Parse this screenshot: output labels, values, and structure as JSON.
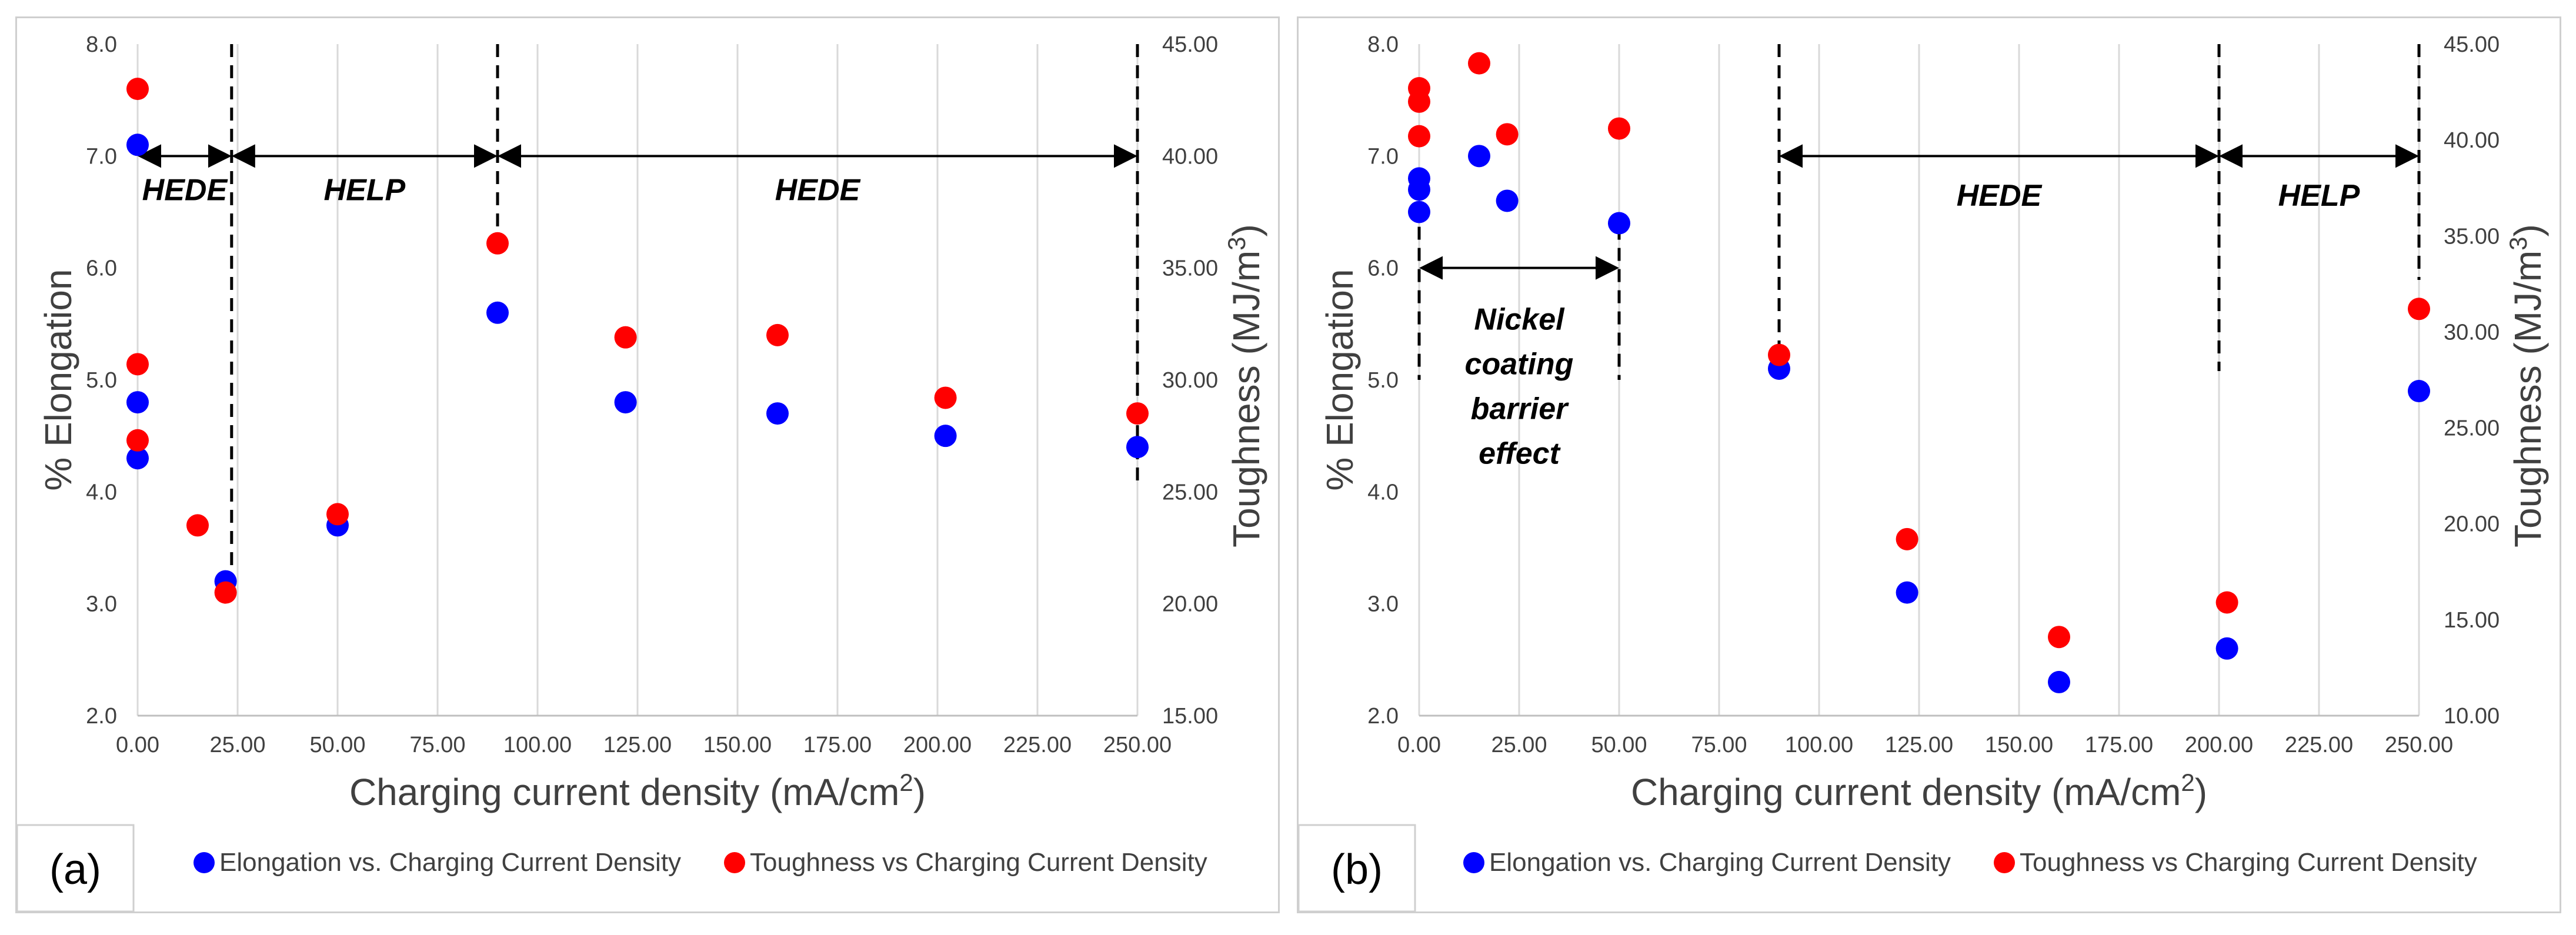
{
  "chart_data": [
    {
      "type": "scatter",
      "panel_label": "(a)",
      "xlabel": "Charging current density (mA/cm",
      "xlabel_sup": "2",
      "xlabel_end": ")",
      "ylabel_left": "% Elongation",
      "ylabel_right": "Toughness (MJ/m",
      "ylabel_right_sup": "3",
      "ylabel_right_end": ")",
      "xlim": [
        0,
        250
      ],
      "ylim_left": [
        2,
        8
      ],
      "ylim_right": [
        15,
        45
      ],
      "x_ticks": [
        "0.00",
        "25.00",
        "50.00",
        "75.00",
        "100.00",
        "125.00",
        "150.00",
        "175.00",
        "200.00",
        "225.00",
        "250.00"
      ],
      "y_left_ticks": [
        "2.0",
        "3.0",
        "4.0",
        "5.0",
        "6.0",
        "7.0",
        "8.0"
      ],
      "y_right_ticks": [
        "15.00",
        "20.00",
        "25.00",
        "30.00",
        "35.00",
        "40.00",
        "45.00"
      ],
      "grid": "vertical",
      "legend_position": "bottom",
      "series": [
        {
          "name": "Elongation vs. Charging Current Density",
          "axis": "left",
          "color": "#0000ff",
          "points": [
            [
              0,
              7.1
            ],
            [
              0,
              4.8
            ],
            [
              0,
              4.3
            ],
            [
              22,
              3.2
            ],
            [
              50,
              3.7
            ],
            [
              90,
              5.6
            ],
            [
              122,
              4.8
            ],
            [
              160,
              4.7
            ],
            [
              202,
              4.5
            ],
            [
              250,
              4.4
            ]
          ]
        },
        {
          "name": "Toughness vs Charging Current Density",
          "axis": "right",
          "color": "#ff0000",
          "points": [
            [
              0,
              43.0
            ],
            [
              0,
              30.7
            ],
            [
              0,
              27.3
            ],
            [
              15,
              23.5
            ],
            [
              22,
              20.5
            ],
            [
              50,
              24.0
            ],
            [
              90,
              36.1
            ],
            [
              122,
              31.9
            ],
            [
              160,
              32.0
            ],
            [
              202,
              29.2
            ],
            [
              250,
              28.5
            ]
          ]
        }
      ],
      "dividers": [
        23.5,
        90,
        250
      ],
      "regions": [
        {
          "label": "HEDE",
          "from": 0,
          "to": 23.5
        },
        {
          "label": "HELP",
          "from": 23.5,
          "to": 90
        },
        {
          "label": "HEDE",
          "from": 90,
          "to": 250
        }
      ],
      "arrow_y": 7.0,
      "label_y": 6.7
    },
    {
      "type": "scatter",
      "panel_label": "(b)",
      "xlabel": "Charging current density (mA/cm",
      "xlabel_sup": "2",
      "xlabel_end": ")",
      "ylabel_left": "% Elongation",
      "ylabel_right": "Toughness (MJ/m",
      "ylabel_right_sup": "3",
      "ylabel_right_end": ")",
      "xlim": [
        0,
        250
      ],
      "ylim_left": [
        2,
        8
      ],
      "ylim_right": [
        10,
        45
      ],
      "x_ticks": [
        "0.00",
        "25.00",
        "50.00",
        "75.00",
        "100.00",
        "125.00",
        "150.00",
        "175.00",
        "200.00",
        "225.00",
        "250.00"
      ],
      "y_left_ticks": [
        "2.0",
        "3.0",
        "4.0",
        "5.0",
        "6.0",
        "7.0",
        "8.0"
      ],
      "y_right_ticks": [
        "10.00",
        "15.00",
        "20.00",
        "25.00",
        "30.00",
        "35.00",
        "40.00",
        "45.00"
      ],
      "grid": "vertical",
      "legend_position": "bottom",
      "series": [
        {
          "name": "Elongation vs. Charging Current Density",
          "axis": "left",
          "color": "#0000ff",
          "points": [
            [
              0,
              6.8
            ],
            [
              0,
              6.7
            ],
            [
              0,
              6.5
            ],
            [
              15,
              7.0
            ],
            [
              22,
              6.6
            ],
            [
              50,
              6.4
            ],
            [
              90,
              5.1
            ],
            [
              122,
              3.1
            ],
            [
              160,
              2.3
            ],
            [
              202,
              2.6
            ],
            [
              250,
              4.9
            ]
          ]
        },
        {
          "name": "Toughness vs Charging Current Density",
          "axis": "right",
          "color": "#ff0000",
          "points": [
            [
              0,
              42.7
            ],
            [
              0,
              42.0
            ],
            [
              0,
              40.2
            ],
            [
              15,
              44.0
            ],
            [
              22,
              40.3
            ],
            [
              50,
              40.6
            ],
            [
              90,
              28.8
            ],
            [
              122,
              19.2
            ],
            [
              160,
              14.1
            ],
            [
              202,
              15.9
            ],
            [
              250,
              31.2
            ]
          ]
        }
      ],
      "nickel_bracket": {
        "from": 0,
        "to": 50,
        "y": 6.0,
        "lines": [
          "Nickel",
          "coating",
          "barrier",
          "effect"
        ]
      },
      "dividers": [
        90,
        200,
        250
      ],
      "regions": [
        {
          "label": "HEDE",
          "from": 90,
          "to": 200
        },
        {
          "label": "HELP",
          "from": 200,
          "to": 250
        }
      ],
      "arrow_y": 7.0,
      "label_y": 6.65
    }
  ]
}
